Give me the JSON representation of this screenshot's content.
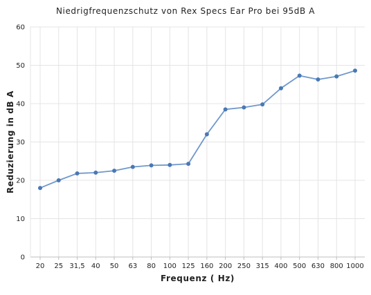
{
  "chart_data": {
    "type": "line",
    "title": "Niedrigfrequenzschutz von Rex Specs Ear Pro bei 95dB A",
    "xlabel": "Frequenz ( Hz)",
    "ylabel": "Reduzierung in dB A",
    "categories": [
      "20",
      "25",
      "31,5",
      "40",
      "50",
      "63",
      "80",
      "100",
      "125",
      "160",
      "200",
      "250",
      "315",
      "400",
      "500",
      "630",
      "800",
      "1000"
    ],
    "series": [
      {
        "values": [
          18,
          20,
          21.8,
          22,
          22.5,
          23.5,
          23.9,
          24,
          24.3,
          32,
          38.5,
          39,
          39.8,
          44,
          47.3,
          46.3,
          47.1,
          48.6
        ]
      }
    ],
    "ylim": [
      0,
      60
    ],
    "yticks": [
      0,
      10,
      20,
      30,
      40,
      50,
      60
    ],
    "grid": true,
    "legend": "none",
    "colors": {
      "line": "#6e98cc",
      "marker": "#4a78b5",
      "grid": "#e4e4e4",
      "axis": "#bdbdbd"
    }
  }
}
